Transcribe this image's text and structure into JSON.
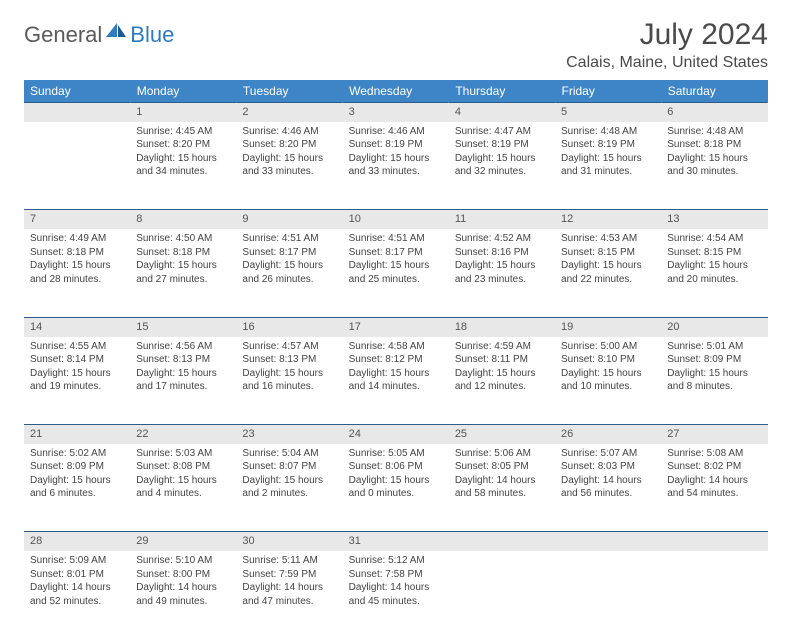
{
  "brand": {
    "part1": "General",
    "part2": "Blue"
  },
  "title": "July 2024",
  "location": "Calais, Maine, United States",
  "colors": {
    "header_bg": "#3d85c6",
    "header_text": "#ffffff",
    "daynum_bg": "#e8e8e8",
    "border": "#2d5b8a",
    "brand_gray": "#5a5a5a",
    "brand_blue": "#2d7bc0"
  },
  "weekdays": [
    "Sunday",
    "Monday",
    "Tuesday",
    "Wednesday",
    "Thursday",
    "Friday",
    "Saturday"
  ],
  "weeks": [
    {
      "days": [
        {
          "num": "",
          "sunrise": "",
          "sunset": "",
          "daylight": ""
        },
        {
          "num": "1",
          "sunrise": "Sunrise: 4:45 AM",
          "sunset": "Sunset: 8:20 PM",
          "daylight": "Daylight: 15 hours and 34 minutes."
        },
        {
          "num": "2",
          "sunrise": "Sunrise: 4:46 AM",
          "sunset": "Sunset: 8:20 PM",
          "daylight": "Daylight: 15 hours and 33 minutes."
        },
        {
          "num": "3",
          "sunrise": "Sunrise: 4:46 AM",
          "sunset": "Sunset: 8:19 PM",
          "daylight": "Daylight: 15 hours and 33 minutes."
        },
        {
          "num": "4",
          "sunrise": "Sunrise: 4:47 AM",
          "sunset": "Sunset: 8:19 PM",
          "daylight": "Daylight: 15 hours and 32 minutes."
        },
        {
          "num": "5",
          "sunrise": "Sunrise: 4:48 AM",
          "sunset": "Sunset: 8:19 PM",
          "daylight": "Daylight: 15 hours and 31 minutes."
        },
        {
          "num": "6",
          "sunrise": "Sunrise: 4:48 AM",
          "sunset": "Sunset: 8:18 PM",
          "daylight": "Daylight: 15 hours and 30 minutes."
        }
      ]
    },
    {
      "days": [
        {
          "num": "7",
          "sunrise": "Sunrise: 4:49 AM",
          "sunset": "Sunset: 8:18 PM",
          "daylight": "Daylight: 15 hours and 28 minutes."
        },
        {
          "num": "8",
          "sunrise": "Sunrise: 4:50 AM",
          "sunset": "Sunset: 8:18 PM",
          "daylight": "Daylight: 15 hours and 27 minutes."
        },
        {
          "num": "9",
          "sunrise": "Sunrise: 4:51 AM",
          "sunset": "Sunset: 8:17 PM",
          "daylight": "Daylight: 15 hours and 26 minutes."
        },
        {
          "num": "10",
          "sunrise": "Sunrise: 4:51 AM",
          "sunset": "Sunset: 8:17 PM",
          "daylight": "Daylight: 15 hours and 25 minutes."
        },
        {
          "num": "11",
          "sunrise": "Sunrise: 4:52 AM",
          "sunset": "Sunset: 8:16 PM",
          "daylight": "Daylight: 15 hours and 23 minutes."
        },
        {
          "num": "12",
          "sunrise": "Sunrise: 4:53 AM",
          "sunset": "Sunset: 8:15 PM",
          "daylight": "Daylight: 15 hours and 22 minutes."
        },
        {
          "num": "13",
          "sunrise": "Sunrise: 4:54 AM",
          "sunset": "Sunset: 8:15 PM",
          "daylight": "Daylight: 15 hours and 20 minutes."
        }
      ]
    },
    {
      "days": [
        {
          "num": "14",
          "sunrise": "Sunrise: 4:55 AM",
          "sunset": "Sunset: 8:14 PM",
          "daylight": "Daylight: 15 hours and 19 minutes."
        },
        {
          "num": "15",
          "sunrise": "Sunrise: 4:56 AM",
          "sunset": "Sunset: 8:13 PM",
          "daylight": "Daylight: 15 hours and 17 minutes."
        },
        {
          "num": "16",
          "sunrise": "Sunrise: 4:57 AM",
          "sunset": "Sunset: 8:13 PM",
          "daylight": "Daylight: 15 hours and 16 minutes."
        },
        {
          "num": "17",
          "sunrise": "Sunrise: 4:58 AM",
          "sunset": "Sunset: 8:12 PM",
          "daylight": "Daylight: 15 hours and 14 minutes."
        },
        {
          "num": "18",
          "sunrise": "Sunrise: 4:59 AM",
          "sunset": "Sunset: 8:11 PM",
          "daylight": "Daylight: 15 hours and 12 minutes."
        },
        {
          "num": "19",
          "sunrise": "Sunrise: 5:00 AM",
          "sunset": "Sunset: 8:10 PM",
          "daylight": "Daylight: 15 hours and 10 minutes."
        },
        {
          "num": "20",
          "sunrise": "Sunrise: 5:01 AM",
          "sunset": "Sunset: 8:09 PM",
          "daylight": "Daylight: 15 hours and 8 minutes."
        }
      ]
    },
    {
      "days": [
        {
          "num": "21",
          "sunrise": "Sunrise: 5:02 AM",
          "sunset": "Sunset: 8:09 PM",
          "daylight": "Daylight: 15 hours and 6 minutes."
        },
        {
          "num": "22",
          "sunrise": "Sunrise: 5:03 AM",
          "sunset": "Sunset: 8:08 PM",
          "daylight": "Daylight: 15 hours and 4 minutes."
        },
        {
          "num": "23",
          "sunrise": "Sunrise: 5:04 AM",
          "sunset": "Sunset: 8:07 PM",
          "daylight": "Daylight: 15 hours and 2 minutes."
        },
        {
          "num": "24",
          "sunrise": "Sunrise: 5:05 AM",
          "sunset": "Sunset: 8:06 PM",
          "daylight": "Daylight: 15 hours and 0 minutes."
        },
        {
          "num": "25",
          "sunrise": "Sunrise: 5:06 AM",
          "sunset": "Sunset: 8:05 PM",
          "daylight": "Daylight: 14 hours and 58 minutes."
        },
        {
          "num": "26",
          "sunrise": "Sunrise: 5:07 AM",
          "sunset": "Sunset: 8:03 PM",
          "daylight": "Daylight: 14 hours and 56 minutes."
        },
        {
          "num": "27",
          "sunrise": "Sunrise: 5:08 AM",
          "sunset": "Sunset: 8:02 PM",
          "daylight": "Daylight: 14 hours and 54 minutes."
        }
      ]
    },
    {
      "days": [
        {
          "num": "28",
          "sunrise": "Sunrise: 5:09 AM",
          "sunset": "Sunset: 8:01 PM",
          "daylight": "Daylight: 14 hours and 52 minutes."
        },
        {
          "num": "29",
          "sunrise": "Sunrise: 5:10 AM",
          "sunset": "Sunset: 8:00 PM",
          "daylight": "Daylight: 14 hours and 49 minutes."
        },
        {
          "num": "30",
          "sunrise": "Sunrise: 5:11 AM",
          "sunset": "Sunset: 7:59 PM",
          "daylight": "Daylight: 14 hours and 47 minutes."
        },
        {
          "num": "31",
          "sunrise": "Sunrise: 5:12 AM",
          "sunset": "Sunset: 7:58 PM",
          "daylight": "Daylight: 14 hours and 45 minutes."
        },
        {
          "num": "",
          "sunrise": "",
          "sunset": "",
          "daylight": ""
        },
        {
          "num": "",
          "sunrise": "",
          "sunset": "",
          "daylight": ""
        },
        {
          "num": "",
          "sunrise": "",
          "sunset": "",
          "daylight": ""
        }
      ]
    }
  ]
}
